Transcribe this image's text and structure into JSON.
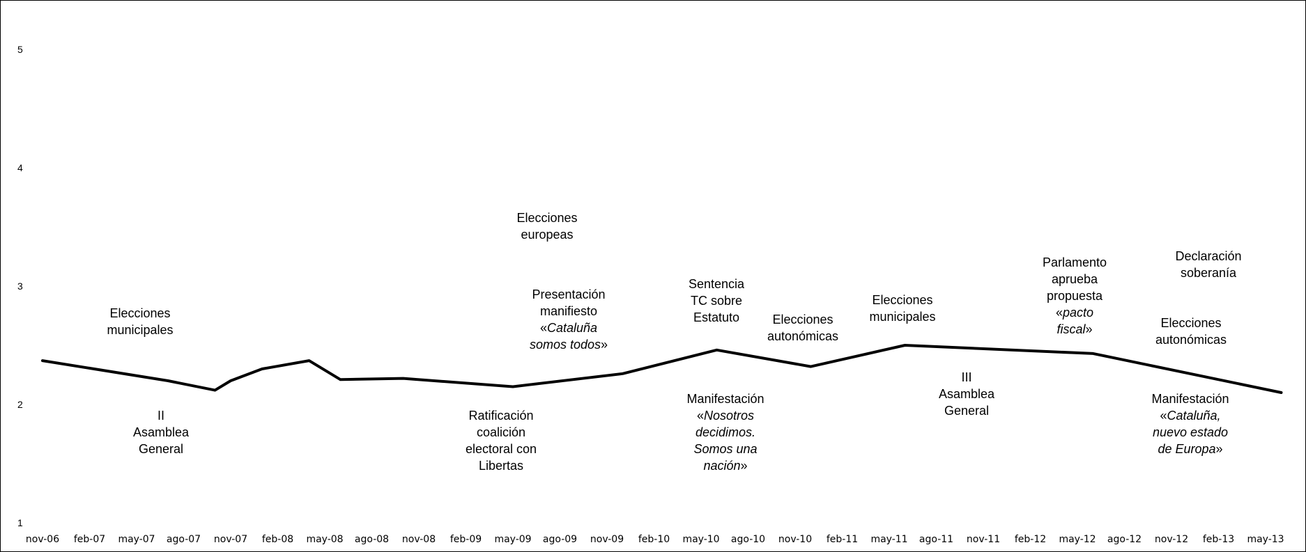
{
  "chart_data": {
    "type": "line",
    "title": "",
    "xlabel": "",
    "ylabel": "",
    "ylim": [
      1,
      5
    ],
    "yticks": [
      "1",
      "2",
      "3",
      "4",
      "5"
    ],
    "grid": false,
    "legend": "none",
    "line_color": "#000000",
    "x_tick_labels": [
      "nov-06",
      "feb-07",
      "may-07",
      "ago-07",
      "nov-07",
      "feb-08",
      "may-08",
      "ago-08",
      "nov-08",
      "feb-09",
      "may-09",
      "ago-09",
      "nov-09",
      "feb-10",
      "may-10",
      "ago-10",
      "nov-10",
      "feb-11",
      "may-11",
      "ago-11",
      "nov-11",
      "feb-12",
      "may-12",
      "ago-12",
      "nov-12",
      "feb-13",
      "may-13"
    ],
    "series": [
      {
        "points": [
          {
            "x": "2006-11",
            "y": 2.37
          },
          {
            "x": "2007-07",
            "y": 2.2
          },
          {
            "x": "2007-10",
            "y": 2.12
          },
          {
            "x": "2007-11",
            "y": 2.2
          },
          {
            "x": "2008-01",
            "y": 2.3
          },
          {
            "x": "2008-04",
            "y": 2.37
          },
          {
            "x": "2008-06",
            "y": 2.21
          },
          {
            "x": "2008-10",
            "y": 2.22
          },
          {
            "x": "2009-05",
            "y": 2.15
          },
          {
            "x": "2009-12",
            "y": 2.26
          },
          {
            "x": "2010-06",
            "y": 2.46
          },
          {
            "x": "2010-12",
            "y": 2.32
          },
          {
            "x": "2011-06",
            "y": 2.5
          },
          {
            "x": "2012-06",
            "y": 2.43
          },
          {
            "x": "2013-06",
            "y": 2.1
          }
        ]
      }
    ],
    "annotations": [
      {
        "id": "elecciones-municipales-2007",
        "lines": [
          [
            {
              "t": "Elecciones"
            }
          ],
          [
            {
              "t": "municipales"
            }
          ]
        ]
      },
      {
        "id": "ii-asamblea-general",
        "lines": [
          [
            {
              "t": "II"
            }
          ],
          [
            {
              "t": "Asamblea"
            }
          ],
          [
            {
              "t": "General"
            }
          ]
        ]
      },
      {
        "id": "elecciones-europeas",
        "lines": [
          [
            {
              "t": "Elecciones"
            }
          ],
          [
            {
              "t": "europeas"
            }
          ]
        ]
      },
      {
        "id": "presentacion-manifiesto",
        "lines": [
          [
            {
              "t": "Presentación"
            }
          ],
          [
            {
              "t": "manifiesto"
            }
          ],
          [
            {
              "t": "«"
            },
            {
              "t": "Cataluña",
              "i": true
            }
          ],
          [
            {
              "t": "somos todos",
              "i": true
            },
            {
              "t": "»"
            }
          ]
        ]
      },
      {
        "id": "ratificacion-coalicion",
        "lines": [
          [
            {
              "t": "Ratificación"
            }
          ],
          [
            {
              "t": "coalición"
            }
          ],
          [
            {
              "t": "electoral con"
            }
          ],
          [
            {
              "t": "Libertas"
            }
          ]
        ]
      },
      {
        "id": "sentencia-tc",
        "lines": [
          [
            {
              "t": "Sentencia"
            }
          ],
          [
            {
              "t": "TC sobre"
            }
          ],
          [
            {
              "t": "Estatuto"
            }
          ]
        ]
      },
      {
        "id": "manifestacion-2010",
        "lines": [
          [
            {
              "t": "Manifestación"
            }
          ],
          [
            {
              "t": "«"
            },
            {
              "t": "Nosotros",
              "i": true
            }
          ],
          [
            {
              "t": "decidimos.",
              "i": true
            }
          ],
          [
            {
              "t": "Somos una",
              "i": true
            }
          ],
          [
            {
              "t": "nación",
              "i": true
            },
            {
              "t": "»"
            }
          ]
        ]
      },
      {
        "id": "elecciones-autonomicas-2010",
        "lines": [
          [
            {
              "t": "Elecciones"
            }
          ],
          [
            {
              "t": "autonómicas"
            }
          ]
        ]
      },
      {
        "id": "elecciones-municipales-2011",
        "lines": [
          [
            {
              "t": "Elecciones"
            }
          ],
          [
            {
              "t": "municipales"
            }
          ]
        ]
      },
      {
        "id": "iii-asamblea-general",
        "lines": [
          [
            {
              "t": "III"
            }
          ],
          [
            {
              "t": "Asamblea"
            }
          ],
          [
            {
              "t": "General"
            }
          ]
        ]
      },
      {
        "id": "parlamento-pacto-fiscal",
        "lines": [
          [
            {
              "t": "Parlamento"
            }
          ],
          [
            {
              "t": "aprueba"
            }
          ],
          [
            {
              "t": "propuesta"
            }
          ],
          [
            {
              "t": "«"
            },
            {
              "t": "pacto",
              "i": true
            }
          ],
          [
            {
              "t": "fiscal",
              "i": true
            },
            {
              "t": "»"
            }
          ]
        ]
      },
      {
        "id": "declaracion-soberania",
        "lines": [
          [
            {
              "t": "Declaración"
            }
          ],
          [
            {
              "t": "soberanía"
            }
          ]
        ]
      },
      {
        "id": "elecciones-autonomicas-2012",
        "lines": [
          [
            {
              "t": "Elecciones"
            }
          ],
          [
            {
              "t": "autonómicas"
            }
          ]
        ]
      },
      {
        "id": "manifestacion-2012",
        "lines": [
          [
            {
              "t": "Manifestación"
            }
          ],
          [
            {
              "t": "«"
            },
            {
              "t": "Cataluña,",
              "i": true
            }
          ],
          [
            {
              "t": "nuevo estado",
              "i": true
            }
          ],
          [
            {
              "t": "de Europa",
              "i": true
            },
            {
              "t": "»"
            }
          ]
        ]
      }
    ]
  }
}
